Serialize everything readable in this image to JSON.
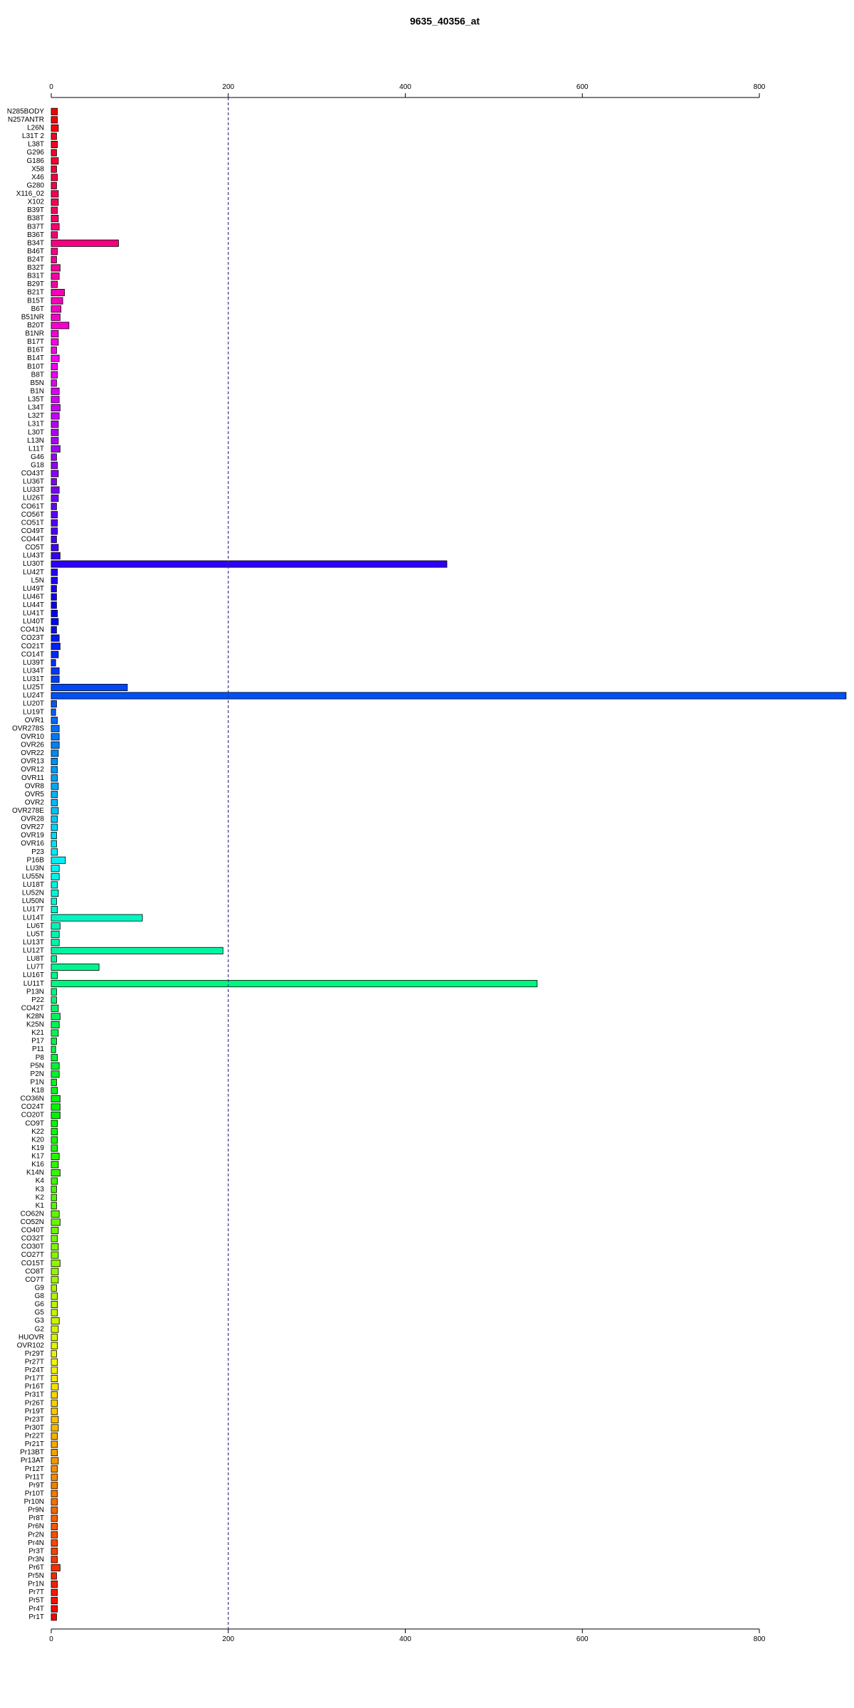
{
  "chart_data": {
    "type": "barh",
    "title": "9635_40356_at",
    "categories": [
      "N285BODY",
      "N257ANTR",
      "L26N",
      "L31T 2",
      "L38T",
      "G296",
      "G186",
      "X58",
      "X46",
      "G280",
      "X116_02",
      "X102",
      "B39T",
      "B38T",
      "B37T",
      "B36T",
      "B34T",
      "B46T",
      "B24T",
      "B32T",
      "B31T",
      "B29T",
      "B21T",
      "B15T",
      "B6T",
      "B51NR",
      "B20T",
      "B1NR",
      "B17T",
      "B16T",
      "B14T",
      "B10T",
      "B8T",
      "B5N",
      "B1N",
      "L35T",
      "L34T",
      "L32T",
      "L31T",
      "L30T",
      "L13N",
      "L11T",
      "G46",
      "G18",
      "CO43T",
      "LU36T",
      "LU33T",
      "LU26T",
      "CO61T",
      "CO56T",
      "CO51T",
      "CO49T",
      "CO44T",
      "CO5T",
      "LU43T",
      "LU30T",
      "LU42T",
      "L5N",
      "LU49T",
      "LU46T",
      "LU44T",
      "LU41T",
      "LU40T",
      "CO41N",
      "CO23T",
      "CO21T",
      "CO14T",
      "LU39T",
      "LU34T",
      "LU31T",
      "LU25T",
      "LU24T",
      "LU20T",
      "LU19T",
      "OVR1",
      "OVR278S",
      "OVR10",
      "OVR26",
      "OVR22",
      "OVR13",
      "OVR12",
      "OVR11",
      "OVR8",
      "OVR5",
      "OVR2",
      "OVR278E",
      "OVR28",
      "OVR27",
      "OVR19",
      "OVR16",
      "P23",
      "P16B",
      "LU3N",
      "LU55N",
      "LU18T",
      "LU52N",
      "LU50N",
      "LU17T",
      "LU14T",
      "LU6T",
      "LU5T",
      "LU13T",
      "LU12T",
      "LU8T",
      "LU7T",
      "LU16T",
      "LU11T",
      "P13N",
      "P22",
      "CO42T",
      "K28N",
      "K25N",
      "K21",
      "P17",
      "P11",
      "P8",
      "P5N",
      "P2N",
      "P1N",
      "K18",
      "CO36N",
      "CO24T",
      "CO20T",
      "CO9T",
      "K22",
      "K20",
      "K19",
      "K17",
      "K16",
      "K14N",
      "K4",
      "K3",
      "K2",
      "K1",
      "CO62N",
      "CO52N",
      "CO40T",
      "CO32T",
      "CO30T",
      "CO27T",
      "CO15T",
      "CO8T",
      "CO7T",
      "G9",
      "G8",
      "G6",
      "G5",
      "G3",
      "G2",
      "HUOVR",
      "OVR102",
      "Pr29T",
      "Pr27T",
      "Pr24T",
      "Pr17T",
      "Pr16T",
      "Pr31T",
      "Pr26T",
      "Pr19T",
      "Pr23T",
      "Pr30T",
      "Pr22T",
      "Pr21T",
      "Pr13BT",
      "Pr13AT",
      "Pr12T",
      "Pr11T",
      "Pr9T",
      "Pr10T",
      "Pr10N",
      "Pr9N",
      "Pr8T",
      "Pr6N",
      "Pr2N",
      "Pr4N",
      "Pr3T",
      "Pr3N",
      "Pr6T",
      "Pr5N",
      "Pr1N",
      "Pr7T",
      "Pr5T",
      "Pr4T",
      "Pr1T"
    ],
    "values": [
      7,
      7,
      8,
      6,
      7,
      6,
      8,
      6,
      7,
      6,
      8,
      8,
      7,
      8,
      9,
      7,
      76,
      7,
      6,
      10,
      9,
      7,
      15,
      13,
      11,
      10,
      20,
      8,
      8,
      6,
      9,
      7,
      7,
      6,
      9,
      9,
      10,
      9,
      8,
      8,
      8,
      10,
      6,
      7,
      8,
      6,
      9,
      8,
      6,
      7,
      7,
      7,
      6,
      8,
      10,
      447,
      7,
      7,
      6,
      6,
      6,
      7,
      8,
      6,
      9,
      10,
      8,
      5,
      9,
      9,
      86,
      898,
      6,
      5,
      7,
      9,
      9,
      9,
      8,
      7,
      7,
      7,
      8,
      7,
      7,
      8,
      7,
      7,
      6,
      6,
      7,
      16,
      9,
      9,
      7,
      8,
      6,
      7,
      103,
      10,
      9,
      9,
      194,
      6,
      54,
      7,
      549,
      6,
      6,
      8,
      10,
      9,
      8,
      6,
      5,
      7,
      9,
      9,
      6,
      7,
      10,
      10,
      10,
      7,
      7,
      7,
      7,
      9,
      8,
      10,
      7,
      6,
      6,
      6,
      9,
      10,
      8,
      7,
      8,
      8,
      10,
      8,
      8,
      6,
      7,
      7,
      7,
      9,
      8,
      7,
      7,
      6,
      7,
      7,
      7,
      8,
      7,
      7,
      7,
      8,
      8,
      7,
      7,
      7,
      8,
      7,
      7,
      7,
      7,
      7,
      7,
      7,
      7,
      7,
      7,
      7,
      7,
      10,
      6,
      7,
      7,
      7,
      7,
      6
    ],
    "color_scale": "rainbow",
    "xlim": [
      0,
      800
    ],
    "xticks": [
      0,
      200,
      400,
      600,
      800
    ],
    "vline": 200
  }
}
